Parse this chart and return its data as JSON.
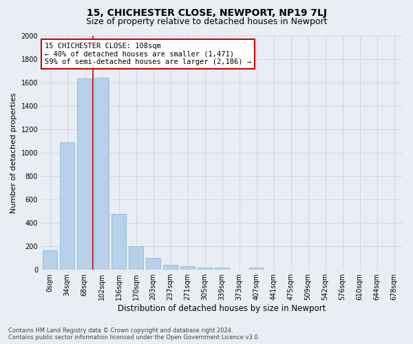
{
  "title": "15, CHICHESTER CLOSE, NEWPORT, NP19 7LJ",
  "subtitle": "Size of property relative to detached houses in Newport",
  "xlabel": "Distribution of detached houses by size in Newport",
  "ylabel": "Number of detached properties",
  "categories": [
    "0sqm",
    "34sqm",
    "68sqm",
    "102sqm",
    "136sqm",
    "170sqm",
    "203sqm",
    "237sqm",
    "271sqm",
    "305sqm",
    "339sqm",
    "373sqm",
    "407sqm",
    "441sqm",
    "475sqm",
    "509sqm",
    "542sqm",
    "576sqm",
    "610sqm",
    "644sqm",
    "678sqm"
  ],
  "bar_values": [
    165,
    1090,
    1635,
    1640,
    475,
    200,
    100,
    45,
    30,
    20,
    20,
    0,
    20,
    0,
    0,
    0,
    0,
    0,
    0,
    0,
    0
  ],
  "bar_color": "#b8d0e8",
  "bar_edge_color": "#7aafd4",
  "vline_x": 2.5,
  "vline_color": "#cc0000",
  "annotation_text": "15 CHICHESTER CLOSE: 108sqm\n← 40% of detached houses are smaller (1,471)\n59% of semi-detached houses are larger (2,186) →",
  "annotation_box_color": "#ffffff",
  "annotation_box_edge_color": "#cc0000",
  "ylim": [
    0,
    2000
  ],
  "yticks": [
    0,
    200,
    400,
    600,
    800,
    1000,
    1200,
    1400,
    1600,
    1800,
    2000
  ],
  "grid_color": "#c8d4e0",
  "background_color": "#e8eef4",
  "footer_line1": "Contains HM Land Registry data © Crown copyright and database right 2024.",
  "footer_line2": "Contains public sector information licensed under the Open Government Licence v3.0.",
  "title_fontsize": 10,
  "subtitle_fontsize": 9,
  "xlabel_fontsize": 8.5,
  "ylabel_fontsize": 8,
  "tick_fontsize": 7,
  "annotation_fontsize": 7.5,
  "footer_fontsize": 6
}
